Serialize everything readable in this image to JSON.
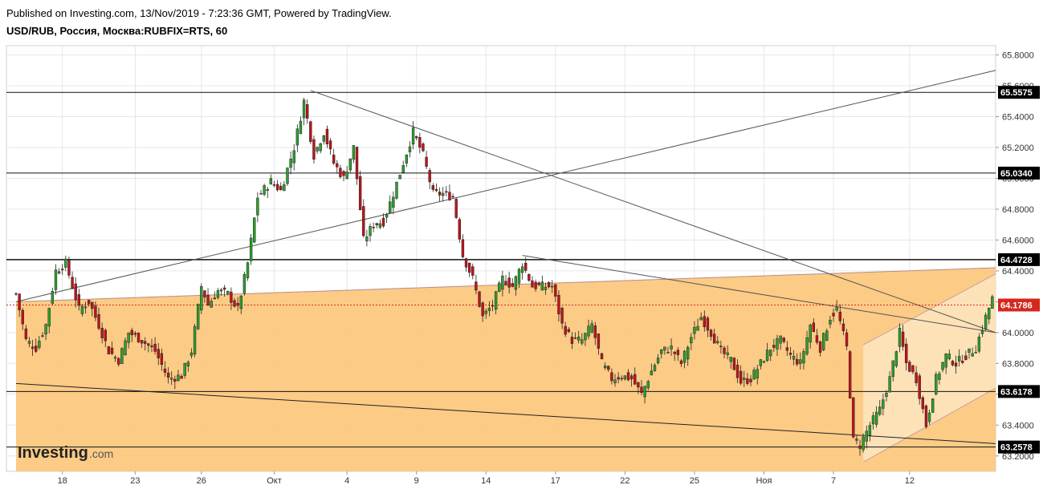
{
  "header": {
    "published": "Published on Investing.com, 13/Nov/2019 - 7:23:36 GMT, Powered by TradingView.",
    "symbol": "USD/RUB, Россия, Москва:RUBFIX=RTS, 60"
  },
  "brand": {
    "name": "Investing",
    "suffix": ".com"
  },
  "colors": {
    "up": "#2ca02c",
    "down": "#c0141a",
    "orange_fill": "#fcc880",
    "channel_fill": "#fde4bd",
    "grid": "#e6e6e6",
    "price_line": "#d4281e"
  },
  "chart_data": {
    "type": "candlestick",
    "title": "",
    "xlabel": "",
    "ylabel": "",
    "ylim": [
      63.1,
      65.86
    ],
    "y_ticks": [
      "65.8000",
      "65.6000",
      "65.4000",
      "65.2000",
      "65.0000",
      "64.8000",
      "64.6000",
      "64.4000",
      "64.2000",
      "64.0000",
      "63.8000",
      "63.6000",
      "63.4000",
      "63.2000"
    ],
    "x_ticks": [
      "18",
      "23",
      "26",
      "Окт",
      "4",
      "9",
      "14",
      "17",
      "22",
      "25",
      "Ноя",
      "7",
      "12"
    ],
    "bars_total": 296,
    "horizontal_levels": [
      {
        "label": "65.5575",
        "value": 65.5575
      },
      {
        "label": "65.0340",
        "value": 65.034
      },
      {
        "label": "64.4728",
        "value": 64.4728
      },
      {
        "label": "63.6178",
        "value": 63.6178
      },
      {
        "label": "63.2578",
        "value": 63.2578
      }
    ],
    "current_price": {
      "label": "64.1786",
      "value": 64.1786
    },
    "trendlines": [
      {
        "name": "rising",
        "from": [
          0,
          64.2
        ],
        "to": [
          296,
          65.7
        ]
      },
      {
        "name": "falling-upper",
        "from": [
          89,
          65.57
        ],
        "to": [
          296,
          64.0
        ]
      },
      {
        "name": "falling-lower",
        "from": [
          153,
          64.5
        ],
        "to": [
          296,
          64.0
        ]
      },
      {
        "name": "support",
        "from": [
          0,
          63.67
        ],
        "to": [
          296,
          63.28
        ]
      }
    ],
    "series": [
      {
        "name": "",
        "anchors": [
          [
            0,
            64.25
          ],
          [
            3,
            63.95
          ],
          [
            6,
            63.9
          ],
          [
            9,
            64.05
          ],
          [
            12,
            64.4
          ],
          [
            15,
            64.45
          ],
          [
            19,
            64.15
          ],
          [
            22,
            64.2
          ],
          [
            25,
            64.05
          ],
          [
            28,
            63.88
          ],
          [
            31,
            63.82
          ],
          [
            34,
            64.0
          ],
          [
            38,
            63.95
          ],
          [
            42,
            63.88
          ],
          [
            46,
            63.7
          ],
          [
            50,
            63.72
          ],
          [
            53,
            63.88
          ],
          [
            56,
            64.3
          ],
          [
            58,
            64.18
          ],
          [
            61,
            64.27
          ],
          [
            64,
            64.25
          ],
          [
            67,
            64.15
          ],
          [
            70,
            64.45
          ],
          [
            73,
            64.88
          ],
          [
            77,
            64.98
          ],
          [
            80,
            64.92
          ],
          [
            84,
            65.2
          ],
          [
            87,
            65.5
          ],
          [
            90,
            65.15
          ],
          [
            93,
            65.3
          ],
          [
            96,
            65.1
          ],
          [
            99,
            65.0
          ],
          [
            102,
            65.2
          ],
          [
            105,
            64.6
          ],
          [
            108,
            64.7
          ],
          [
            111,
            64.72
          ],
          [
            114,
            64.9
          ],
          [
            117,
            65.1
          ],
          [
            120,
            65.3
          ],
          [
            123,
            65.15
          ],
          [
            126,
            64.9
          ],
          [
            129,
            64.9
          ],
          [
            132,
            64.88
          ],
          [
            135,
            64.5
          ],
          [
            138,
            64.35
          ],
          [
            141,
            64.1
          ],
          [
            144,
            64.18
          ],
          [
            147,
            64.35
          ],
          [
            150,
            64.3
          ],
          [
            153,
            64.45
          ],
          [
            156,
            64.3
          ],
          [
            159,
            64.3
          ],
          [
            162,
            64.3
          ],
          [
            165,
            64.05
          ],
          [
            168,
            63.95
          ],
          [
            171,
            63.95
          ],
          [
            174,
            64.05
          ],
          [
            177,
            63.8
          ],
          [
            180,
            63.7
          ],
          [
            183,
            63.72
          ],
          [
            186,
            63.7
          ],
          [
            189,
            63.6
          ],
          [
            192,
            63.75
          ],
          [
            195,
            63.88
          ],
          [
            198,
            63.9
          ],
          [
            201,
            63.8
          ],
          [
            204,
            63.97
          ],
          [
            207,
            64.1
          ],
          [
            210,
            64.0
          ],
          [
            213,
            63.88
          ],
          [
            216,
            63.82
          ],
          [
            219,
            63.68
          ],
          [
            222,
            63.7
          ],
          [
            225,
            63.8
          ],
          [
            228,
            63.9
          ],
          [
            231,
            63.95
          ],
          [
            234,
            63.85
          ],
          [
            237,
            63.8
          ],
          [
            240,
            64.05
          ],
          [
            243,
            63.9
          ],
          [
            246,
            64.1
          ],
          [
            248,
            64.15
          ],
          [
            251,
            63.9
          ],
          [
            253,
            63.3
          ],
          [
            255,
            63.27
          ],
          [
            258,
            63.4
          ],
          [
            261,
            63.5
          ],
          [
            264,
            63.7
          ],
          [
            267,
            64.0
          ],
          [
            269,
            63.8
          ],
          [
            272,
            63.7
          ],
          [
            275,
            63.4
          ],
          [
            278,
            63.7
          ],
          [
            281,
            63.85
          ],
          [
            284,
            63.8
          ],
          [
            287,
            63.85
          ],
          [
            290,
            63.9
          ],
          [
            293,
            64.1
          ],
          [
            295,
            64.22
          ]
        ]
      }
    ]
  }
}
